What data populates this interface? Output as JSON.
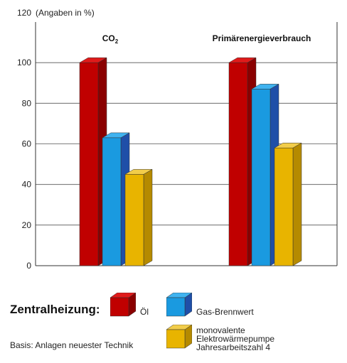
{
  "chart_data": {
    "type": "bar",
    "ylabel": "(Angaben in %)",
    "ylim": [
      0,
      120
    ],
    "yticks": [
      0,
      20,
      40,
      60,
      80,
      100,
      120
    ],
    "grid": true,
    "categories": [
      "CO",
      "Primärenergieverbrauch"
    ],
    "category_subscripts": [
      "2",
      ""
    ],
    "series": [
      {
        "name": "Öl",
        "values": [
          100,
          100
        ]
      },
      {
        "name": "Gas-Brennwert",
        "values": [
          63,
          87
        ]
      },
      {
        "name": "monovalente Elektrowärmepumpe Jahresarbeitszahl 4",
        "values": [
          45,
          58
        ]
      }
    ]
  },
  "legend": {
    "title": "Zentralheizung:",
    "items": [
      {
        "label": "Öl",
        "color": "#c00000"
      },
      {
        "label": "Gas-Brennwert",
        "color": "#1a9ae0"
      },
      {
        "label": "monovalente\nElektrowärmepumpe\nJahresarbeitszahl 4",
        "color": "#e8b400"
      }
    ]
  },
  "footnote": "Basis: Anlagen neuester Technik",
  "colors": {
    "red": "#c00000",
    "red_side": "#8a0000",
    "red_top": "#e01a1a",
    "blue": "#1a9ae0",
    "blue_side": "#1f4fa8",
    "blue_top": "#3fb3f0",
    "gold": "#e8b400",
    "gold_side": "#b58a00",
    "gold_top": "#f2cd4a"
  }
}
